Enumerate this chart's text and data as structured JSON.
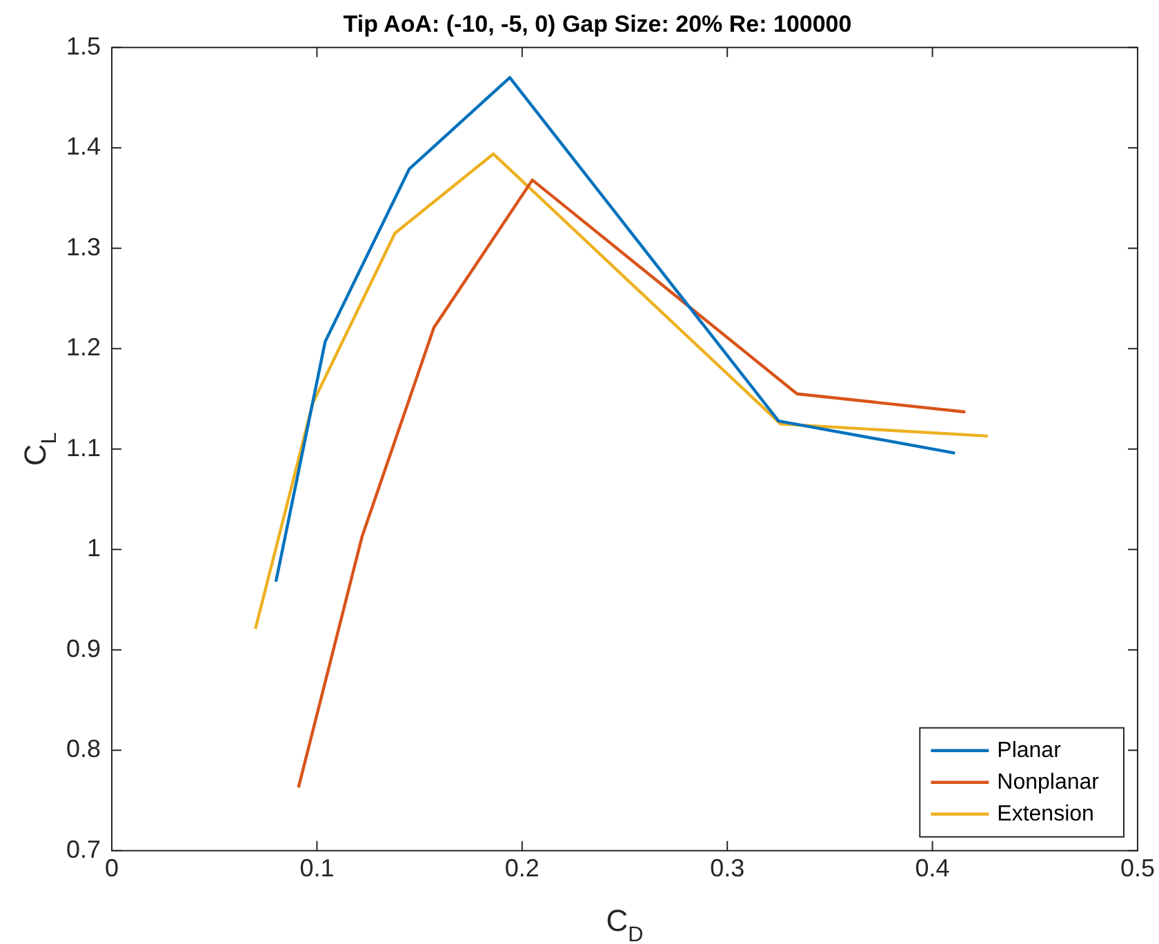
{
  "chart_data": {
    "type": "line",
    "title": "Tip AoA: (-10, -5, 0) Gap Size: 20% Re: 100000",
    "xlabel": "C$_{D}$",
    "ylabel": "C$_{L}$",
    "xlim": [
      0,
      0.5
    ],
    "xticks": [
      0,
      0.1,
      0.2,
      0.3,
      0.4,
      0.5
    ],
    "ylim": [
      0.7,
      1.5
    ],
    "yticks": [
      0.7,
      0.8,
      0.9,
      1,
      1.1,
      1.2,
      1.3,
      1.4,
      1.5
    ],
    "grid": false,
    "legend": "bottom right",
    "marker": "none",
    "line_style": "solid",
    "series": [
      {
        "name": "Planar",
        "color": "#0072bd",
        "x": [
          0.08,
          0.104,
          0.145,
          0.194,
          0.325,
          0.411
        ],
        "values": [
          0.968,
          1.207,
          1.379,
          1.47,
          1.128,
          1.096
        ]
      },
      {
        "name": "Nonplanar",
        "color": "#d95319",
        "x": [
          0.091,
          0.122,
          0.157,
          0.205,
          0.334,
          0.416
        ],
        "values": [
          0.763,
          1.013,
          1.221,
          1.368,
          1.155,
          1.137
        ]
      },
      {
        "name": "Extension",
        "color": "#edb120",
        "x": [
          0.07,
          0.098,
          0.138,
          0.186,
          0.326,
          0.427
        ],
        "values": [
          0.921,
          1.146,
          1.315,
          1.394,
          1.125,
          1.113
        ]
      }
    ]
  }
}
